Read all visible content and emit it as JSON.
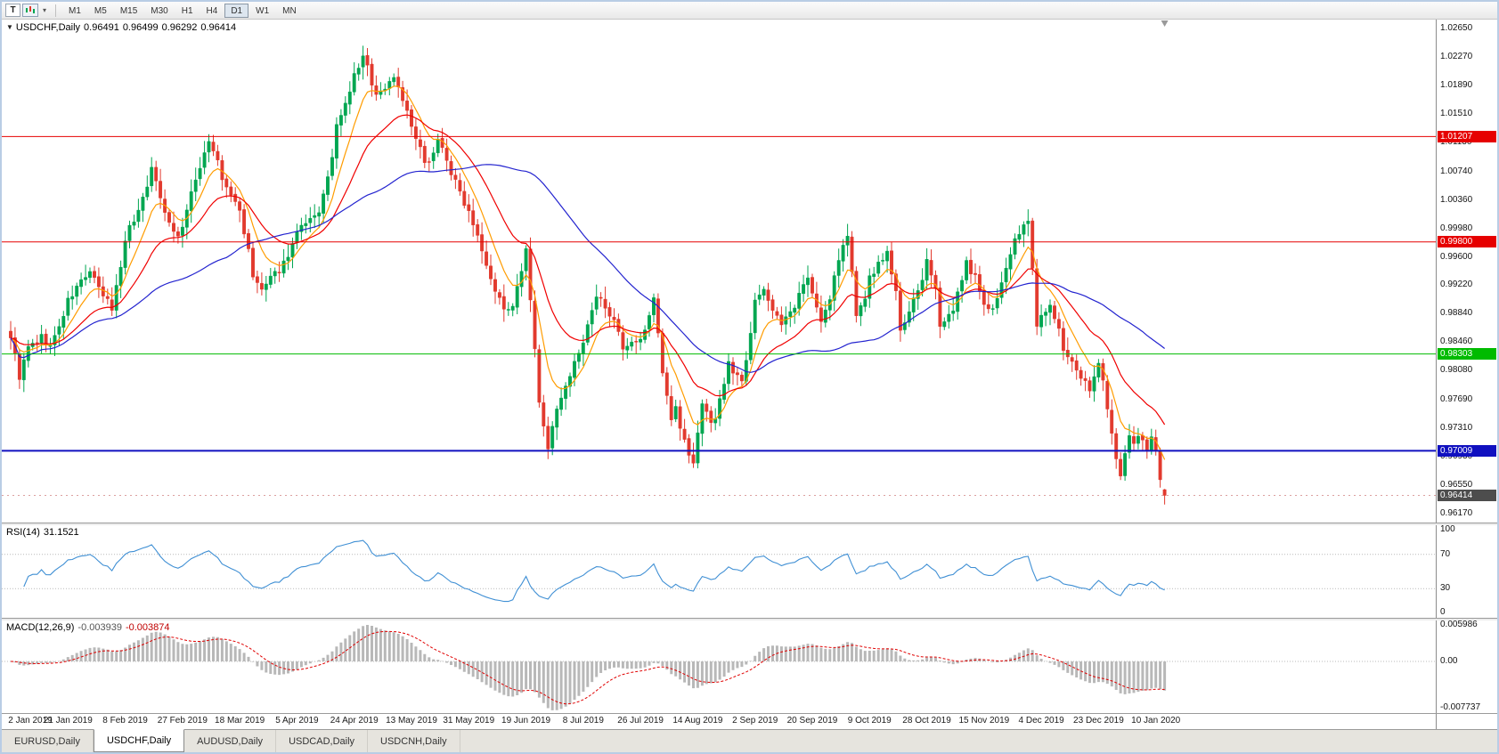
{
  "toolbar": {
    "tool_button": "T",
    "timeframes": [
      "M1",
      "M5",
      "M15",
      "M30",
      "H1",
      "H4",
      "D1",
      "W1",
      "MN"
    ],
    "active_timeframe": "D1"
  },
  "chart_header": {
    "symbol": "USDCHF,Daily",
    "open": "0.96491",
    "high": "0.96499",
    "low": "0.96292",
    "close": "0.96414"
  },
  "price_axis": {
    "ticks": [
      "1.02650",
      "1.02270",
      "1.01890",
      "1.01510",
      "1.01130",
      "1.00740",
      "1.00360",
      "0.99980",
      "0.99600",
      "0.99220",
      "0.98840",
      "0.98460",
      "0.98080",
      "0.97690",
      "0.97310",
      "0.96930",
      "0.96550",
      "0.96170"
    ]
  },
  "objects": {
    "hlines": [
      {
        "label": "1.01207",
        "value": 1.01207,
        "color": "#e60000",
        "width": 1
      },
      {
        "label": "0.99800",
        "value": 0.998,
        "color": "#e60000",
        "width": 1
      },
      {
        "label": "0.98303",
        "value": 0.98303,
        "color": "#00bb00",
        "width": 1
      },
      {
        "label": "0.97009",
        "value": 0.97009,
        "color": "#1010c0",
        "width": 2
      }
    ],
    "current_price": {
      "label": "0.96414",
      "value": 0.96414,
      "badge_color": "#4d4d4d",
      "line_color": "#dba0a0"
    }
  },
  "indicators": {
    "rsi": {
      "name": "RSI(14)",
      "value": "31.1521",
      "period": 14,
      "line_color": "#3f8fd4",
      "levels": [
        70,
        30
      ],
      "ticks": [
        {
          "label": "100",
          "value": 100
        },
        {
          "label": "70",
          "value": 70
        },
        {
          "label": "30",
          "value": 30
        },
        {
          "label": "0",
          "value": 0
        }
      ]
    },
    "macd": {
      "name": "MACD(12,26,9)",
      "value_main": "-0.003939",
      "value_signal": "-0.003874",
      "max": 0.005986,
      "min": -0.007737,
      "histogram_color": "#b8b8b8",
      "signal_color": "#e00000",
      "ticks": [
        {
          "label": "0.005986",
          "value": 0.005986
        },
        {
          "label": "0.00",
          "value": 0
        },
        {
          "label": "-0.007737",
          "value": -0.007737
        }
      ]
    }
  },
  "date_axis": {
    "bars_per_label": 13,
    "labels": [
      "2 Jan 2019",
      "21 Jan 2019",
      "8 Feb 2019",
      "27 Feb 2019",
      "18 Mar 2019",
      "5 Apr 2019",
      "24 Apr 2019",
      "13 May 2019",
      "31 May 2019",
      "19 Jun 2019",
      "8 Jul 2019",
      "26 Jul 2019",
      "14 Aug 2019",
      "2 Sep 2019",
      "20 Sep 2019",
      "9 Oct 2019",
      "28 Oct 2019",
      "15 Nov 2019",
      "4 Dec 2019",
      "23 Dec 2019",
      "10 Jan 2020"
    ]
  },
  "tabs": [
    {
      "label": "EURUSD,Daily",
      "active": false
    },
    {
      "label": "USDCHF,Daily",
      "active": true
    },
    {
      "label": "AUDUSD,Daily",
      "active": false
    },
    {
      "label": "USDCAD,Daily",
      "active": false
    },
    {
      "label": "USDCNH,Daily",
      "active": false
    }
  ],
  "chart_data": {
    "type": "candlestick",
    "symbol": "USDCHF",
    "timeframe": "Daily",
    "bars": 263,
    "bar_step": 4.945,
    "seed": 9,
    "price_top": 1.027689,
    "price_bottom": 0.960511,
    "up_color": "#00a651",
    "down_color": "#e23a2e",
    "last_candle": {
      "open": 0.96491,
      "high": 0.96499,
      "low": 0.96292,
      "close": 0.96414
    },
    "ma": [
      {
        "period": 8,
        "type": "ema",
        "color": "#ff9c00"
      },
      {
        "period": 21,
        "type": "ema",
        "color": "#f00000"
      },
      {
        "period": 50,
        "type": "sma",
        "color": "#2323cf"
      }
    ],
    "anchors": [
      [
        0,
        0.9855
      ],
      [
        2,
        0.98
      ],
      [
        4,
        0.9838
      ],
      [
        7,
        0.9852
      ],
      [
        9,
        0.984
      ],
      [
        11,
        0.9866
      ],
      [
        13,
        0.99
      ],
      [
        16,
        0.9928
      ],
      [
        18,
        0.994
      ],
      [
        20,
        0.9916
      ],
      [
        23,
        0.9892
      ],
      [
        25,
        0.9948
      ],
      [
        26,
        0.9986
      ],
      [
        29,
        1.0022
      ],
      [
        32,
        1.0076
      ],
      [
        34,
        1.0042
      ],
      [
        36,
        1.0006
      ],
      [
        38,
        0.9986
      ],
      [
        39,
        1.0002
      ],
      [
        41,
        1.0042
      ],
      [
        43,
        1.0082
      ],
      [
        45,
        1.0116
      ],
      [
        47,
        1.0086
      ],
      [
        48,
        1.0062
      ],
      [
        50,
        1.0042
      ],
      [
        52,
        1.0022
      ],
      [
        54,
        0.9966
      ],
      [
        55,
        0.9932
      ],
      [
        57,
        0.9916
      ],
      [
        58,
        0.9922
      ],
      [
        60,
        0.9936
      ],
      [
        62,
        0.9952
      ],
      [
        64,
        0.9976
      ],
      [
        65,
        0.9992
      ],
      [
        67,
        1.0002
      ],
      [
        69,
        1.0012
      ],
      [
        70,
        1.0022
      ],
      [
        72,
        1.0062
      ],
      [
        74,
        1.0132
      ],
      [
        76,
        1.0162
      ],
      [
        78,
        1.0202
      ],
      [
        80,
        1.0226
      ],
      [
        81,
        1.0212
      ],
      [
        83,
        1.0176
      ],
      [
        85,
        1.0186
      ],
      [
        87,
        1.0202
      ],
      [
        89,
        1.0172
      ],
      [
        91,
        1.0132
      ],
      [
        93,
        1.0102
      ],
      [
        94,
        1.0082
      ],
      [
        96,
        1.0102
      ],
      [
        97,
        1.0116
      ],
      [
        99,
        1.0092
      ],
      [
        100,
        1.0072
      ],
      [
        102,
        1.0046
      ],
      [
        104,
        1.0022
      ],
      [
        106,
        0.9992
      ],
      [
        108,
        0.9952
      ],
      [
        110,
        0.9916
      ],
      [
        111,
        0.9902
      ],
      [
        113,
        0.9886
      ],
      [
        114,
        0.9892
      ],
      [
        116,
        0.9942
      ],
      [
        117,
        0.9966
      ],
      [
        118,
        0.9902
      ],
      [
        120,
        0.9762
      ],
      [
        122,
        0.9706
      ],
      [
        124,
        0.9752
      ],
      [
        125,
        0.9776
      ],
      [
        127,
        0.9802
      ],
      [
        128,
        0.9816
      ],
      [
        129,
        0.9832
      ],
      [
        130,
        0.9846
      ],
      [
        132,
        0.9886
      ],
      [
        133,
        0.9906
      ],
      [
        135,
        0.9896
      ],
      [
        136,
        0.9886
      ],
      [
        138,
        0.9856
      ],
      [
        139,
        0.9832
      ],
      [
        141,
        0.9842
      ],
      [
        143,
        0.9846
      ],
      [
        145,
        0.9882
      ],
      [
        146,
        0.9902
      ],
      [
        147,
        0.9862
      ],
      [
        148,
        0.9806
      ],
      [
        150,
        0.9742
      ],
      [
        151,
        0.9756
      ],
      [
        153,
        0.9716
      ],
      [
        155,
        0.9682
      ],
      [
        156,
        0.9726
      ],
      [
        157,
        0.9762
      ],
      [
        159,
        0.9742
      ],
      [
        160,
        0.9746
      ],
      [
        162,
        0.9792
      ],
      [
        163,
        0.9816
      ],
      [
        165,
        0.9802
      ],
      [
        166,
        0.9792
      ],
      [
        168,
        0.9862
      ],
      [
        169,
        0.9906
      ],
      [
        171,
        0.9912
      ],
      [
        172,
        0.9902
      ],
      [
        174,
        0.9882
      ],
      [
        175,
        0.9872
      ],
      [
        177,
        0.9882
      ],
      [
        178,
        0.9892
      ],
      [
        180,
        0.9922
      ],
      [
        181,
        0.9936
      ],
      [
        183,
        0.9896
      ],
      [
        184,
        0.9872
      ],
      [
        186,
        0.9902
      ],
      [
        187,
        0.9936
      ],
      [
        189,
        0.9972
      ],
      [
        190,
        0.9992
      ],
      [
        191,
        0.9942
      ],
      [
        192,
        0.9876
      ],
      [
        194,
        0.9906
      ],
      [
        195,
        0.9932
      ],
      [
        197,
        0.9952
      ],
      [
        199,
        0.9966
      ],
      [
        201,
        0.9912
      ],
      [
        202,
        0.9862
      ],
      [
        204,
        0.9882
      ],
      [
        205,
        0.9902
      ],
      [
        207,
        0.9932
      ],
      [
        208,
        0.9952
      ],
      [
        210,
        0.9912
      ],
      [
        211,
        0.9872
      ],
      [
        213,
        0.9882
      ],
      [
        214,
        0.9892
      ],
      [
        216,
        0.9926
      ],
      [
        217,
        0.9952
      ],
      [
        218,
        0.9942
      ],
      [
        219,
        0.9932
      ],
      [
        220,
        0.9912
      ],
      [
        221,
        0.9892
      ],
      [
        223,
        0.9896
      ],
      [
        224,
        0.9906
      ],
      [
        226,
        0.9942
      ],
      [
        227,
        0.9966
      ],
      [
        229,
        0.9992
      ],
      [
        230,
        1.0002
      ],
      [
        231,
        1.0006
      ],
      [
        232,
        0.9942
      ],
      [
        233,
        0.9872
      ],
      [
        235,
        0.9886
      ],
      [
        236,
        0.9896
      ],
      [
        238,
        0.9862
      ],
      [
        239,
        0.9832
      ],
      [
        241,
        0.9816
      ],
      [
        242,
        0.9806
      ],
      [
        244,
        0.9796
      ],
      [
        245,
        0.9786
      ],
      [
        246,
        0.9802
      ],
      [
        247,
        0.9816
      ],
      [
        248,
        0.9792
      ],
      [
        249,
        0.9762
      ],
      [
        250,
        0.9722
      ],
      [
        251,
        0.9692
      ],
      [
        252,
        0.9666
      ],
      [
        253,
        0.9692
      ],
      [
        254,
        0.9716
      ],
      [
        255,
        0.9706
      ],
      [
        256,
        0.9722
      ],
      [
        257,
        0.9712
      ],
      [
        258,
        0.9702
      ],
      [
        259,
        0.9722
      ],
      [
        260,
        0.9706
      ],
      [
        261,
        0.9662
      ],
      [
        262,
        0.9641
      ]
    ]
  }
}
